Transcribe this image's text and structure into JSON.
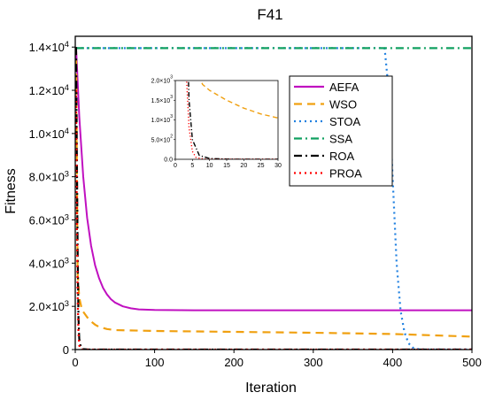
{
  "chart_data": {
    "type": "line",
    "title": "F41",
    "xlabel": "Iteration",
    "ylabel": "Fitness",
    "xlim": [
      0,
      500
    ],
    "ylim": [
      0,
      14500
    ],
    "x_ticks": [
      0,
      100,
      200,
      300,
      400,
      500
    ],
    "y_ticks": [
      {
        "value": 0,
        "label": "0"
      },
      {
        "value": 2000,
        "label": "2.0×10",
        "exp": "3"
      },
      {
        "value": 4000,
        "label": "4.0×10",
        "exp": "3"
      },
      {
        "value": 6000,
        "label": "6.0×10",
        "exp": "3"
      },
      {
        "value": 8000,
        "label": "8.0×10",
        "exp": "3"
      },
      {
        "value": 10000,
        "label": "1.0×10",
        "exp": "4"
      },
      {
        "value": 12000,
        "label": "1.2×10",
        "exp": "4"
      },
      {
        "value": 14000,
        "label": "1.4×10",
        "exp": "4"
      }
    ],
    "legend_position": "top-right",
    "series": [
      {
        "name": "AEFA",
        "color": "#c010c0",
        "dash": "solid",
        "x": [
          1,
          5,
          10,
          15,
          20,
          25,
          30,
          35,
          40,
          45,
          50,
          60,
          70,
          80,
          100,
          150,
          200,
          300,
          400,
          500
        ],
        "y": [
          14000,
          10800,
          8000,
          6100,
          4800,
          3900,
          3300,
          2850,
          2550,
          2330,
          2180,
          2000,
          1910,
          1860,
          1830,
          1820,
          1820,
          1820,
          1820,
          1820
        ]
      },
      {
        "name": "WSO",
        "color": "#f0a010",
        "dash": "dashed",
        "x": [
          1,
          3,
          5,
          8,
          10,
          15,
          20,
          25,
          30,
          40,
          50,
          100,
          200,
          300,
          400,
          500
        ],
        "y": [
          14000,
          3500,
          2400,
          1900,
          1750,
          1500,
          1300,
          1150,
          1050,
          950,
          900,
          860,
          820,
          780,
          720,
          600
        ]
      },
      {
        "name": "STOA",
        "color": "#2080e0",
        "dash": "dotted",
        "x": [
          1,
          100,
          200,
          300,
          390,
          395,
          400,
          405,
          410,
          415,
          420,
          425,
          430,
          440,
          450,
          500
        ],
        "y": [
          13950,
          13950,
          13950,
          13950,
          13950,
          12000,
          8000,
          4000,
          1800,
          800,
          300,
          100,
          30,
          10,
          5,
          5
        ]
      },
      {
        "name": "SSA",
        "color": "#10a060",
        "dash": "dashdot",
        "x": [
          1,
          50,
          100,
          200,
          300,
          400,
          500
        ],
        "y": [
          13950,
          13950,
          13950,
          13950,
          13950,
          13950,
          13950
        ]
      },
      {
        "name": "ROA",
        "color": "#000000",
        "dash": "dashdot",
        "x": [
          1,
          2,
          3,
          4,
          5,
          7,
          10,
          15,
          20,
          500
        ],
        "y": [
          14000,
          9000,
          4500,
          1500,
          500,
          100,
          20,
          5,
          0,
          0
        ]
      },
      {
        "name": "PROA",
        "color": "#ff0000",
        "dash": "dotted",
        "x": [
          1,
          2,
          3,
          4,
          5,
          6,
          8,
          10,
          500
        ],
        "y": [
          12000,
          6000,
          2500,
          800,
          200,
          50,
          10,
          0,
          0
        ]
      }
    ],
    "inset": {
      "xlim": [
        0,
        30
      ],
      "ylim": [
        0,
        2000
      ],
      "x_ticks": [
        0,
        5,
        10,
        15,
        20,
        25,
        30
      ],
      "y_ticks": [
        {
          "value": 0,
          "label": "0.0"
        },
        {
          "value": 500,
          "label": "5.0×10",
          "exp": "2"
        },
        {
          "value": 1000,
          "label": "1.0×10",
          "exp": "3"
        },
        {
          "value": 1500,
          "label": "1.5×10",
          "exp": "3"
        },
        {
          "value": 2000,
          "label": "2.0×10",
          "exp": "3"
        }
      ]
    }
  }
}
